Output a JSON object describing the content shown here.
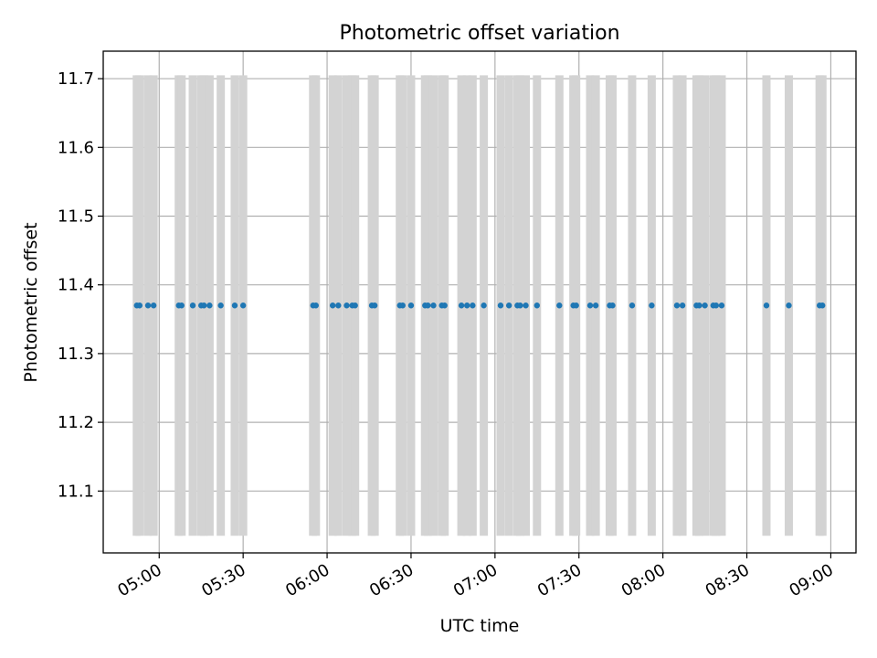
{
  "chart_data": {
    "type": "scatter",
    "title": "Photometric offset variation",
    "xlabel": "UTC time",
    "ylabel": "Photometric offset",
    "x_axis_kind": "time",
    "xlim": [
      "04:40",
      "09:09"
    ],
    "ylim": [
      11.01,
      11.74
    ],
    "grid": true,
    "x_ticks": [
      "05:00",
      "05:30",
      "06:00",
      "06:30",
      "07:00",
      "07:30",
      "08:00",
      "08:30",
      "09:00"
    ],
    "y_ticks": [
      "11.1",
      "11.2",
      "11.3",
      "11.4",
      "11.5",
      "11.6",
      "11.7"
    ],
    "error_bar_color": "#d3d3d3",
    "point_color": "#1f77b4",
    "series": [
      {
        "x": [
          "04:52",
          "04:53",
          "04:56",
          "04:58",
          "05:07",
          "05:08",
          "05:12",
          "05:15",
          "05:16",
          "05:18",
          "05:22",
          "05:27",
          "05:30",
          "05:55",
          "05:56",
          "06:02",
          "06:04",
          "06:07",
          "06:09",
          "06:10",
          "06:16",
          "06:17",
          "06:26",
          "06:27",
          "06:30",
          "06:35",
          "06:36",
          "06:38",
          "06:41",
          "06:42",
          "06:48",
          "06:50",
          "06:52",
          "06:56",
          "07:02",
          "07:05",
          "07:08",
          "07:09",
          "07:11",
          "07:15",
          "07:23",
          "07:28",
          "07:29",
          "07:34",
          "07:36",
          "07:41",
          "07:42",
          "07:49",
          "07:56",
          "08:05",
          "08:07",
          "08:12",
          "08:13",
          "08:15",
          "08:18",
          "08:19",
          "08:21",
          "08:37",
          "08:45",
          "08:56",
          "08:57"
        ],
        "y": [
          11.37,
          11.37,
          11.37,
          11.37,
          11.37,
          11.37,
          11.37,
          11.37,
          11.37,
          11.37,
          11.37,
          11.37,
          11.37,
          11.37,
          11.37,
          11.37,
          11.37,
          11.37,
          11.37,
          11.37,
          11.37,
          11.37,
          11.37,
          11.37,
          11.37,
          11.37,
          11.37,
          11.37,
          11.37,
          11.37,
          11.37,
          11.37,
          11.37,
          11.37,
          11.37,
          11.37,
          11.37,
          11.37,
          11.37,
          11.37,
          11.37,
          11.37,
          11.37,
          11.37,
          11.37,
          11.37,
          11.37,
          11.37,
          11.37,
          11.37,
          11.37,
          11.37,
          11.37,
          11.37,
          11.37,
          11.37,
          11.37,
          11.37,
          11.37,
          11.37,
          11.37
        ],
        "err_low": 11.035,
        "err_high": 11.705
      }
    ]
  }
}
